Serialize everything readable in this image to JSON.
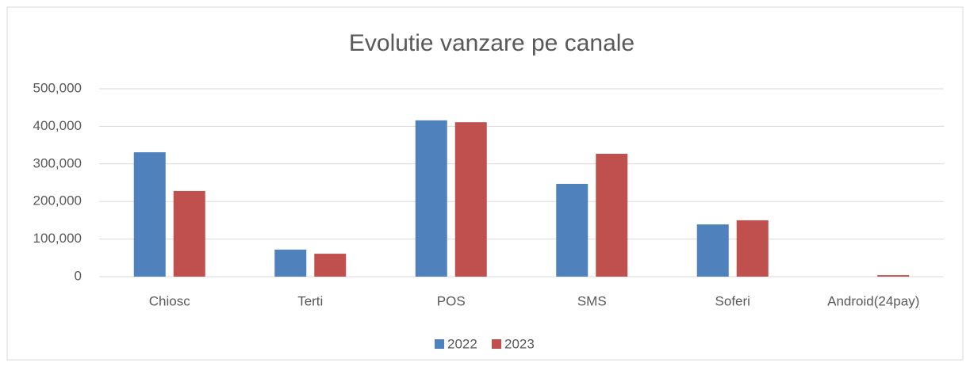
{
  "chart_data": {
    "type": "bar",
    "title": "Evolutie vanzare pe canale",
    "categories": [
      "Chiosc",
      "Terti",
      "POS",
      "SMS",
      "Soferi",
      "Android(24pay)"
    ],
    "series": [
      {
        "name": "2022",
        "color": "#4f81bd",
        "values": [
          331000,
          72000,
          416000,
          247000,
          139000,
          0
        ]
      },
      {
        "name": "2023",
        "color": "#c0504d",
        "values": [
          228000,
          61000,
          411000,
          327000,
          150000,
          4000
        ]
      }
    ],
    "ylim": [
      0,
      500000
    ],
    "yticks": [
      0,
      {
        "value": 100000,
        "label": "100,000"
      },
      {
        "value": 200000,
        "label": "200,000"
      },
      {
        "value": 300000,
        "label": "300,000"
      },
      {
        "value": 400000,
        "label": "400,000"
      },
      {
        "value": 500000,
        "label": "500,000"
      }
    ],
    "grid": true,
    "legend": "bottom"
  }
}
